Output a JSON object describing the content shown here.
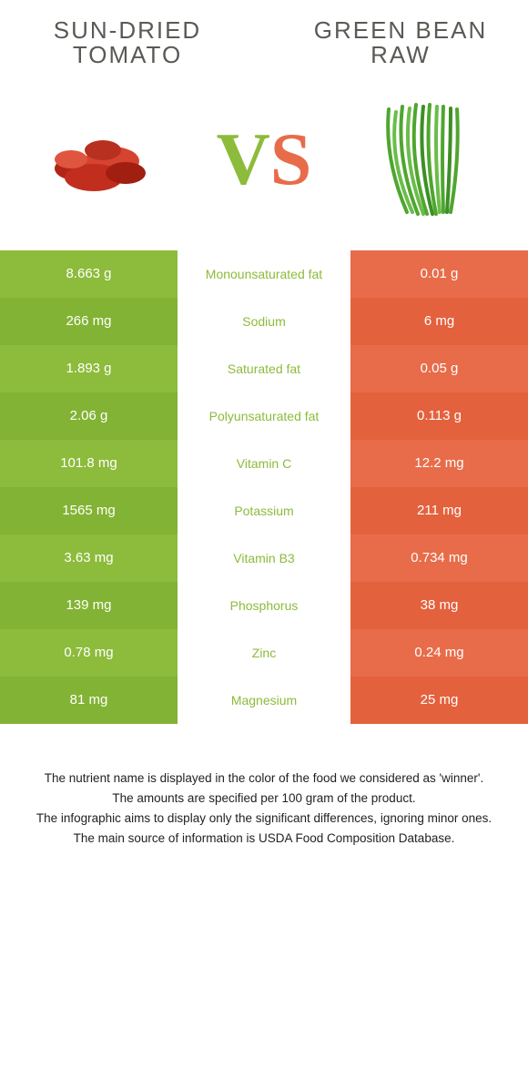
{
  "colors": {
    "left_bar": [
      "#8dbb3b",
      "#82b334",
      "#8dbb3b",
      "#82b334",
      "#8dbb3b",
      "#82b334",
      "#8dbb3b",
      "#82b334",
      "#8dbb3b",
      "#82b334"
    ],
    "right_bar": [
      "#e86c4a",
      "#e4613d",
      "#e86c4a",
      "#e4613d",
      "#e86c4a",
      "#e4613d",
      "#e86c4a",
      "#e4613d",
      "#e86c4a",
      "#e4613d"
    ],
    "nutrient_text": "#8dbb3b",
    "tomato_accent": "#c22e1e",
    "bean_accent": "#4fa62f"
  },
  "left": {
    "title_line1": "SUN-DRIED",
    "title_line2": "TOMATO"
  },
  "right": {
    "title_line1": "GREEN BEAN",
    "title_line2": "RAW"
  },
  "vs": {
    "v": "V",
    "s": "S"
  },
  "rows": [
    {
      "left": "8.663 g",
      "nutrient": "Monounsaturated fat",
      "right": "0.01 g"
    },
    {
      "left": "266 mg",
      "nutrient": "Sodium",
      "right": "6 mg"
    },
    {
      "left": "1.893 g",
      "nutrient": "Saturated fat",
      "right": "0.05 g"
    },
    {
      "left": "2.06 g",
      "nutrient": "Polyunsaturated fat",
      "right": "0.113 g"
    },
    {
      "left": "101.8 mg",
      "nutrient": "Vitamin C",
      "right": "12.2 mg"
    },
    {
      "left": "1565 mg",
      "nutrient": "Potassium",
      "right": "211 mg"
    },
    {
      "left": "3.63 mg",
      "nutrient": "Vitamin B3",
      "right": "0.734 mg"
    },
    {
      "left": "139 mg",
      "nutrient": "Phosphorus",
      "right": "38 mg"
    },
    {
      "left": "0.78 mg",
      "nutrient": "Zinc",
      "right": "0.24 mg"
    },
    {
      "left": "81 mg",
      "nutrient": "Magnesium",
      "right": "25 mg"
    }
  ],
  "footnotes": [
    "The nutrient name is displayed in the color of the food we considered as 'winner'.",
    "The amounts are specified per 100 gram of the product.",
    "The infographic aims to display only the significant differences, ignoring minor ones.",
    "The main source of information is USDA Food Composition Database."
  ]
}
